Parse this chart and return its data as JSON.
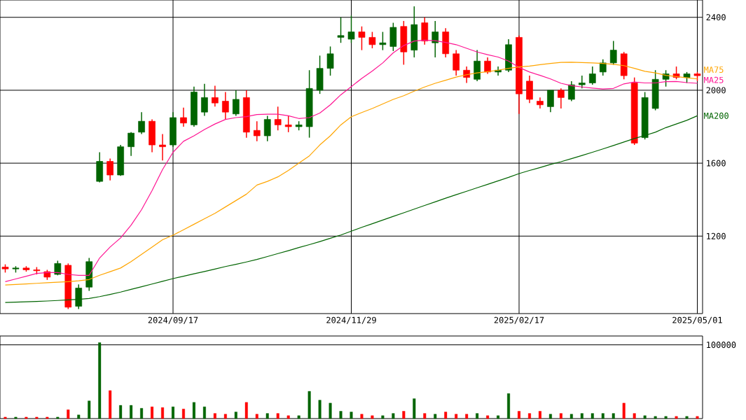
{
  "chart_data": [
    {
      "type": "candlestick",
      "grid": true,
      "categories": [
        null,
        null,
        null,
        null,
        null,
        null,
        null,
        null,
        null,
        null,
        null,
        null,
        null,
        null,
        null,
        null,
        "2024/09/17",
        null,
        null,
        null,
        null,
        null,
        null,
        null,
        null,
        null,
        null,
        null,
        null,
        null,
        null,
        null,
        null,
        "2024/11/29",
        null,
        null,
        null,
        null,
        null,
        null,
        null,
        null,
        null,
        null,
        null,
        null,
        null,
        null,
        null,
        "2025/02/17",
        null,
        null,
        null,
        null,
        null,
        null,
        null,
        null,
        null,
        null,
        null,
        null,
        null,
        null,
        null,
        null,
        "2025/05/01"
      ],
      "ohlc": [
        [
          1030,
          1045,
          1000,
          1020
        ],
        [
          1020,
          1035,
          1000,
          1025
        ],
        [
          1025,
          1035,
          1005,
          1015
        ],
        [
          1015,
          1030,
          990,
          1010
        ],
        [
          1005,
          1015,
          960,
          975
        ],
        [
          990,
          1065,
          985,
          1050
        ],
        [
          1040,
          1050,
          800,
          810
        ],
        [
          815,
          935,
          800,
          915
        ],
        [
          920,
          1080,
          900,
          1060
        ],
        [
          1500,
          1660,
          1495,
          1610
        ],
        [
          1610,
          1625,
          1505,
          1535
        ],
        [
          1535,
          1700,
          1530,
          1690
        ],
        [
          1690,
          1770,
          1640,
          1765
        ],
        [
          1770,
          1880,
          1760,
          1830
        ],
        [
          1830,
          1840,
          1660,
          1700
        ],
        [
          1700,
          1760,
          1615,
          1690
        ],
        [
          1700,
          1880,
          1690,
          1850
        ],
        [
          1850,
          1905,
          1800,
          1820
        ],
        [
          1810,
          2020,
          1800,
          1990
        ],
        [
          1880,
          2035,
          1860,
          1960
        ],
        [
          1960,
          2025,
          1910,
          1930
        ],
        [
          1940,
          1990,
          1840,
          1880
        ],
        [
          1870,
          2000,
          1860,
          1950
        ],
        [
          1960,
          2000,
          1740,
          1770
        ],
        [
          1780,
          1830,
          1720,
          1750
        ],
        [
          1750,
          1860,
          1720,
          1840
        ],
        [
          1840,
          1910,
          1780,
          1810
        ],
        [
          1810,
          1860,
          1770,
          1800
        ],
        [
          1800,
          1830,
          1780,
          1810
        ],
        [
          1800,
          2110,
          1740,
          2010
        ],
        [
          2000,
          2190,
          1980,
          2120
        ],
        [
          2120,
          2240,
          2080,
          2200
        ],
        [
          2290,
          2400,
          2260,
          2300
        ],
        [
          2280,
          2410,
          2260,
          2320
        ],
        [
          2320,
          2350,
          2220,
          2290
        ],
        [
          2290,
          2320,
          2230,
          2250
        ],
        [
          2250,
          2320,
          2220,
          2260
        ],
        [
          2240,
          2370,
          2215,
          2345
        ],
        [
          2350,
          2380,
          2140,
          2210
        ],
        [
          2220,
          2460,
          2180,
          2360
        ],
        [
          2370,
          2400,
          2250,
          2270
        ],
        [
          2260,
          2380,
          2180,
          2320
        ],
        [
          2320,
          2340,
          2180,
          2200
        ],
        [
          2200,
          2220,
          2080,
          2110
        ],
        [
          2110,
          2130,
          2040,
          2070
        ],
        [
          2060,
          2220,
          2050,
          2160
        ],
        [
          2160,
          2180,
          2090,
          2100
        ],
        [
          2100,
          2130,
          2080,
          2110
        ],
        [
          2110,
          2280,
          2100,
          2250
        ],
        [
          2290,
          2300,
          1870,
          1980
        ],
        [
          2050,
          2080,
          1930,
          1950
        ],
        [
          1940,
          1960,
          1900,
          1920
        ],
        [
          1910,
          2000,
          1880,
          2000
        ],
        [
          2000,
          2010,
          1900,
          1960
        ],
        [
          1950,
          2050,
          1940,
          2030
        ],
        [
          2030,
          2080,
          2010,
          2040
        ],
        [
          2040,
          2130,
          2030,
          2090
        ],
        [
          2100,
          2170,
          2080,
          2150
        ],
        [
          2150,
          2270,
          2140,
          2220
        ],
        [
          2200,
          2210,
          2060,
          2080
        ],
        [
          2040,
          2070,
          1700,
          1710
        ],
        [
          1740,
          1990,
          1730,
          1960
        ],
        [
          1900,
          2110,
          1890,
          2060
        ],
        [
          2060,
          2110,
          2020,
          2090
        ],
        [
          2090,
          2130,
          2060,
          2070
        ],
        [
          2070,
          2100,
          2040,
          2090
        ],
        [
          2090,
          2100,
          2050,
          2080
        ]
      ],
      "colors": [
        "#ff0000",
        "#006400",
        "#ff0000",
        "#ff0000",
        "#ff0000",
        "#006400",
        "#ff0000",
        "#006400",
        "#006400",
        "#006400",
        "#ff0000",
        "#006400",
        "#006400",
        "#006400",
        "#ff0000",
        "#ff0000",
        "#006400",
        "#ff0000",
        "#006400",
        "#006400",
        "#ff0000",
        "#ff0000",
        "#006400",
        "#ff0000",
        "#ff0000",
        "#006400",
        "#ff0000",
        "#ff0000",
        "#006400",
        "#006400",
        "#006400",
        "#006400",
        "#006400",
        "#006400",
        "#ff0000",
        "#ff0000",
        "#006400",
        "#006400",
        "#ff0000",
        "#006400",
        "#ff0000",
        "#006400",
        "#ff0000",
        "#ff0000",
        "#ff0000",
        "#006400",
        "#ff0000",
        "#006400",
        "#006400",
        "#ff0000",
        "#ff0000",
        "#ff0000",
        "#006400",
        "#ff0000",
        "#006400",
        "#006400",
        "#006400",
        "#006400",
        "#006400",
        "#ff0000",
        "#ff0000",
        "#006400",
        "#006400",
        "#006400",
        "#ff0000",
        "#006400",
        "#ff0000"
      ],
      "series": [
        {
          "type": "line",
          "name": "MA25",
          "color": "#ff1493",
          "values": [
            950,
            965,
            980,
            995,
            1000,
            1000,
            990,
            985,
            985,
            1080,
            1140,
            1190,
            1260,
            1345,
            1450,
            1565,
            1660,
            1720,
            1750,
            1785,
            1815,
            1840,
            1850,
            1855,
            1867,
            1869,
            1869,
            1860,
            1845,
            1850,
            1875,
            1920,
            1975,
            2020,
            2065,
            2105,
            2150,
            2205,
            2245,
            2270,
            2275,
            2272,
            2262,
            2250,
            2230,
            2210,
            2195,
            2182,
            2160,
            2125,
            2100,
            2082,
            2062,
            2038,
            2025,
            2018,
            2012,
            2007,
            2010,
            2035,
            2045,
            2040,
            2040,
            2047,
            2048,
            2042,
            2038
          ]
        },
        {
          "type": "line",
          "name": "MA75",
          "color": "#ffa500",
          "values": [
            932,
            935,
            938,
            941,
            944,
            947,
            950,
            955,
            962,
            985,
            1005,
            1025,
            1060,
            1100,
            1140,
            1180,
            1205,
            1235,
            1265,
            1295,
            1325,
            1360,
            1395,
            1430,
            1480,
            1500,
            1525,
            1560,
            1600,
            1640,
            1700,
            1750,
            1810,
            1855,
            1878,
            1900,
            1925,
            1950,
            1970,
            1995,
            2018,
            2038,
            2055,
            2072,
            2085,
            2095,
            2102,
            2110,
            2120,
            2128,
            2133,
            2140,
            2147,
            2153,
            2154,
            2152,
            2150,
            2147,
            2142,
            2135,
            2120,
            2104,
            2095,
            2082,
            2075,
            2068,
            2062
          ]
        },
        {
          "type": "line",
          "name": "MA200",
          "color": "#006400",
          "values": [
            836,
            838,
            840,
            842,
            844,
            847,
            850,
            853,
            858,
            868,
            880,
            893,
            908,
            922,
            937,
            952,
            967,
            980,
            993,
            1006,
            1019,
            1033,
            1045,
            1058,
            1072,
            1088,
            1104,
            1120,
            1137,
            1153,
            1170,
            1188,
            1206,
            1227,
            1248,
            1268,
            1288,
            1308,
            1328,
            1348,
            1368,
            1388,
            1408,
            1427,
            1446,
            1465,
            1484,
            1503,
            1522,
            1543,
            1560,
            1576,
            1593,
            1608,
            1625,
            1642,
            1660,
            1678,
            1697,
            1716,
            1735,
            1752,
            1770,
            1795,
            1815,
            1835,
            1860
          ]
        }
      ],
      "ylim": [
        775,
        2495
      ],
      "yticks": [
        1200,
        1600,
        2000,
        2400
      ]
    },
    {
      "type": "bar",
      "tick_labels": "y",
      "ylim": [
        0,
        112000
      ],
      "yticks": [
        100000
      ],
      "categories": [
        null,
        null,
        null,
        null,
        null,
        null,
        null,
        null,
        null,
        null,
        null,
        null,
        null,
        null,
        null,
        null,
        "2024/09/17",
        null,
        null,
        null,
        null,
        null,
        null,
        null,
        null,
        null,
        null,
        null,
        null,
        null,
        null,
        null,
        null,
        "2024/11/29",
        null,
        null,
        null,
        null,
        null,
        null,
        null,
        null,
        null,
        null,
        null,
        null,
        null,
        null,
        null,
        "2025/02/17",
        null,
        null,
        null,
        null,
        null,
        null,
        null,
        null,
        null,
        null,
        null,
        null,
        null,
        null,
        null,
        null,
        "2025/05/01"
      ],
      "values": [
        2000,
        2000,
        2000,
        2000,
        2000,
        2000,
        12000,
        5000,
        24000,
        103000,
        38000,
        18000,
        18000,
        14000,
        16000,
        15000,
        16000,
        13000,
        22000,
        16000,
        7000,
        6000,
        9000,
        22000,
        6000,
        7000,
        7000,
        4000,
        4000,
        37000,
        25000,
        21000,
        10000,
        9000,
        6000,
        4000,
        4000,
        7000,
        10000,
        27000,
        7000,
        6000,
        9000,
        6000,
        6000,
        7000,
        4000,
        4000,
        34000,
        10000,
        7000,
        10000,
        6000,
        7000,
        6000,
        7000,
        7000,
        7000,
        7000,
        21000,
        7000,
        4000,
        3000,
        3000,
        3000,
        3000,
        3000
      ],
      "colors": [
        "#ff0000",
        "#006400",
        "#ff0000",
        "#ff0000",
        "#ff0000",
        "#006400",
        "#ff0000",
        "#006400",
        "#006400",
        "#006400",
        "#ff0000",
        "#006400",
        "#006400",
        "#006400",
        "#ff0000",
        "#ff0000",
        "#006400",
        "#ff0000",
        "#006400",
        "#006400",
        "#ff0000",
        "#ff0000",
        "#006400",
        "#ff0000",
        "#ff0000",
        "#006400",
        "#ff0000",
        "#ff0000",
        "#006400",
        "#006400",
        "#006400",
        "#006400",
        "#006400",
        "#006400",
        "#ff0000",
        "#ff0000",
        "#006400",
        "#006400",
        "#ff0000",
        "#006400",
        "#ff0000",
        "#006400",
        "#ff0000",
        "#ff0000",
        "#ff0000",
        "#006400",
        "#ff0000",
        "#006400",
        "#006400",
        "#ff0000",
        "#ff0000",
        "#ff0000",
        "#006400",
        "#ff0000",
        "#006400",
        "#006400",
        "#006400",
        "#006400",
        "#006400",
        "#ff0000",
        "#ff0000",
        "#006400",
        "#006400",
        "#006400",
        "#ff0000",
        "#006400",
        "#ff0000"
      ],
      "grid": "y"
    }
  ]
}
